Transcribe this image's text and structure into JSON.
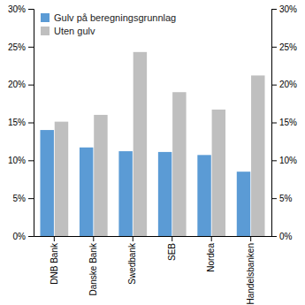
{
  "chart_data": {
    "type": "bar",
    "categories": [
      "DNB Bank",
      "Danske Bank",
      "Swedbank",
      "SEB",
      "Nordea",
      "Handelsbanken"
    ],
    "series": [
      {
        "name": "Gulv på beregningsgrunnlag",
        "color": "#5B9BD5",
        "values": [
          14.0,
          11.7,
          11.2,
          11.1,
          10.7,
          8.5
        ]
      },
      {
        "name": "Uten gulv",
        "color": "#BFBFBF",
        "values": [
          15.1,
          16.0,
          24.3,
          19.0,
          16.7,
          21.2
        ]
      }
    ],
    "ylim": [
      0,
      30
    ],
    "yticks": [
      {
        "value": 0,
        "label": "0%"
      },
      {
        "value": 5,
        "label": "5%"
      },
      {
        "value": 10,
        "label": "10%"
      },
      {
        "value": 15,
        "label": "15%"
      },
      {
        "value": 20,
        "label": "20%"
      },
      {
        "value": 25,
        "label": "25%"
      },
      {
        "value": 30,
        "label": "30%"
      }
    ],
    "y2lim": [
      0,
      30
    ],
    "y2ticks": [
      {
        "value": 0,
        "label": "0%"
      },
      {
        "value": 5,
        "label": "5%"
      },
      {
        "value": 10,
        "label": "10%"
      },
      {
        "value": 15,
        "label": "15%"
      },
      {
        "value": 20,
        "label": "20%"
      },
      {
        "value": 25,
        "label": "25%"
      },
      {
        "value": 30,
        "label": "30%"
      }
    ],
    "grid": false,
    "legend": "upper left"
  }
}
